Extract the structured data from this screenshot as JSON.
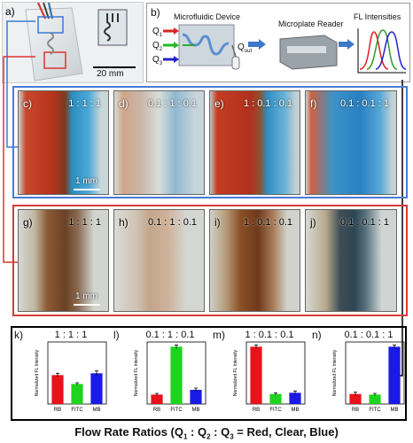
{
  "panel_a": {
    "label": "a)",
    "scale": "20 mm"
  },
  "panel_b": {
    "label": "b)",
    "device": "Microfluidic Device",
    "reader": "Microplate Reader",
    "intensities": "FL Intensities",
    "inputs": [
      "Q",
      "Q",
      "Q"
    ],
    "input_subs": [
      "1",
      "2",
      "3"
    ],
    "output": "Q",
    "output_sub": "out",
    "arrow_color": "#3d78c9"
  },
  "row1": [
    {
      "label": "c)",
      "ratio": "1 : 1 : 1"
    },
    {
      "label": "d)",
      "ratio": "0.1 : 1 : 0.1"
    },
    {
      "label": "e)",
      "ratio": "1 : 0.1 : 0.1"
    },
    {
      "label": "f)",
      "ratio": "0.1 : 0.1 : 1"
    }
  ],
  "row1_scale": "1 mm",
  "row2": [
    {
      "label": "g)",
      "ratio": "1 : 1 : 1"
    },
    {
      "label": "h)",
      "ratio": "0.1 : 1 : 0.1"
    },
    {
      "label": "i)",
      "ratio": "1 : 0.1 : 0.1"
    },
    {
      "label": "j)",
      "ratio": "0.1 : 0.1 : 1"
    }
  ],
  "row2_scale": "1 mm",
  "colors": {
    "red": "#e8121b",
    "green": "#1fd41f",
    "blue": "#1a1ae6",
    "frame_blue": "#4a7ad6",
    "frame_red": "#d83a3a"
  },
  "chart_data": [
    {
      "type": "bar",
      "label": "k)",
      "title": "1 : 1 : 1",
      "categories": [
        "RB",
        "FITC",
        "MB"
      ],
      "values": [
        0.49,
        0.34,
        0.52
      ],
      "errors": [
        0.03,
        0.02,
        0.04
      ],
      "ylabel": "Normalized FL Intensity",
      "ylim": [
        0,
        1.05
      ]
    },
    {
      "type": "bar",
      "label": "l)",
      "title": "0.1 : 1 : 0.1",
      "categories": [
        "RB",
        "FITC",
        "MB"
      ],
      "values": [
        0.16,
        0.97,
        0.24
      ],
      "errors": [
        0.02,
        0.03,
        0.03
      ],
      "ylabel": "Normalized FL Intensity",
      "ylim": [
        0,
        1.05
      ]
    },
    {
      "type": "bar",
      "label": "m)",
      "title": "1 : 0.1 : 0.1",
      "categories": [
        "RB",
        "FITC",
        "MB"
      ],
      "values": [
        0.97,
        0.17,
        0.19
      ],
      "errors": [
        0.03,
        0.02,
        0.03
      ],
      "ylabel": "Normalized FL Intensity",
      "ylim": [
        0,
        1.05
      ]
    },
    {
      "type": "bar",
      "label": "n)",
      "title": "0.1 : 0.1 : 1",
      "categories": [
        "RB",
        "FITC",
        "MB"
      ],
      "values": [
        0.17,
        0.16,
        0.97
      ],
      "errors": [
        0.03,
        0.02,
        0.03
      ],
      "ylabel": "Normalized FL Intensity",
      "ylim": [
        0,
        1.05
      ]
    }
  ],
  "footer": {
    "prefix": "Flow Rate Ratios (Q",
    "s1": "1",
    "c1": " : Q",
    "s2": "2",
    "c2": " : Q",
    "s3": "3",
    "suffix": " = Red, Clear, Blue)"
  }
}
